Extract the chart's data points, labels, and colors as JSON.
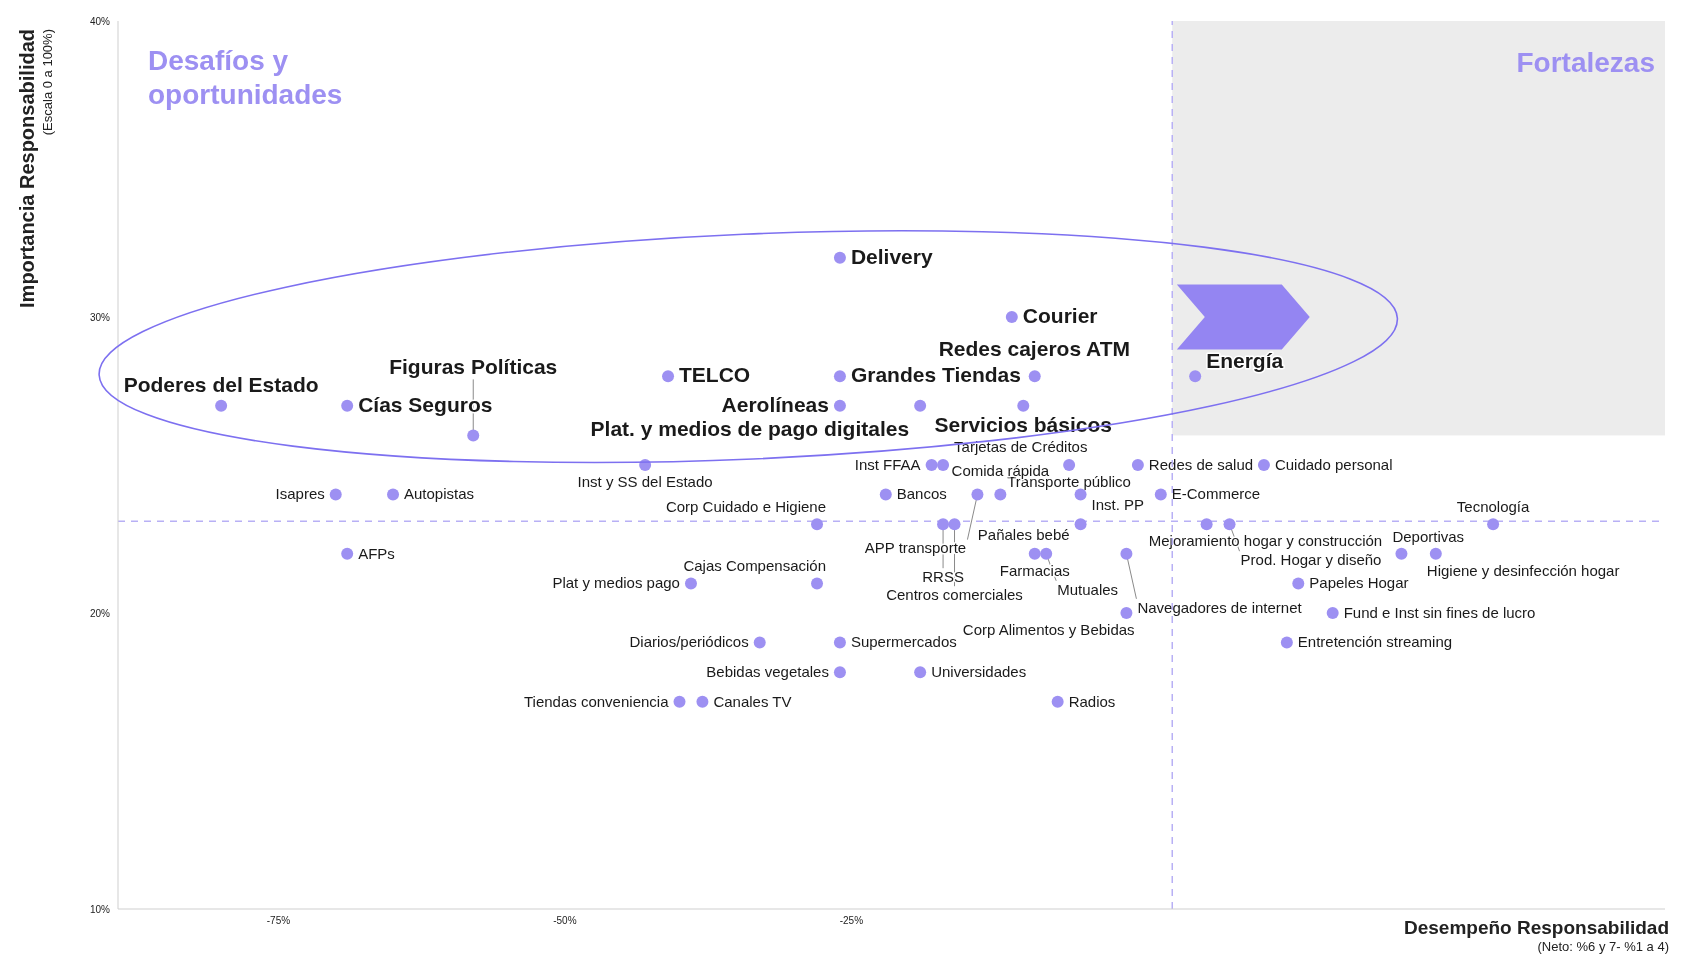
{
  "chart_data": {
    "type": "scatter",
    "xlabel": "Desempeño Responsabilidad",
    "ylabel": "Importancia Responsabilidad",
    "marker": "circle",
    "xlim": [
      -89,
      46
    ],
    "ylim": [
      10,
      40
    ],
    "xticks": [
      {
        "value": -75,
        "label": "-75%"
      },
      {
        "value": -50,
        "label": "-50%"
      },
      {
        "value": -25,
        "label": "-25%"
      }
    ],
    "yticks": [
      {
        "value": 10,
        "label": "10%"
      },
      {
        "value": 20,
        "label": "20%"
      },
      {
        "value": 30,
        "label": "30%"
      },
      {
        "value": 40,
        "label": "40%"
      }
    ],
    "ref_lines": [
      {
        "axis": "x",
        "value": 3,
        "color": "#b8b0f5",
        "line_style": "dashed"
      },
      {
        "axis": "y",
        "value": 23.1,
        "color": "#b8b0f5",
        "line_style": "dashed"
      }
    ],
    "series": [
      {
        "color": "#9d90f2",
        "x": [
          -26,
          -11,
          -41,
          -26,
          -9,
          5,
          -80,
          -69,
          -26,
          -19,
          -10,
          -58
        ],
        "values": [
          32,
          30,
          28,
          28,
          28,
          28,
          27,
          27,
          27,
          27,
          27,
          26
        ]
      },
      {
        "color": "#9d90f2",
        "x": [
          -43,
          -18,
          -17,
          -6,
          0,
          11,
          -70,
          -65,
          -22,
          -14,
          -12,
          -5,
          2,
          -28,
          -17,
          -16,
          -5,
          6,
          8,
          31,
          -69,
          -9,
          -8,
          -1,
          23,
          26,
          -39,
          -28,
          14,
          -1,
          17,
          -33,
          -26,
          13,
          -26,
          -19,
          -40,
          -38,
          -7
        ],
        "values": [
          25,
          25,
          25,
          25,
          25,
          25,
          24,
          24,
          24,
          24,
          24,
          24,
          24,
          23,
          23,
          23,
          23,
          23,
          23,
          23,
          22,
          22,
          22,
          22,
          22,
          22,
          21,
          21,
          21,
          20,
          20,
          19,
          19,
          19,
          18,
          18,
          17,
          17,
          17
        ]
      }
    ],
    "annotations": [
      "Desafíos y oportunidades",
      "Fortalezas",
      "(Escala 0 a 100%)",
      "(Neto: %6 y 7- %1 a 4)",
      {
        "text": "Delivery",
        "x": -26,
        "y": 32
      },
      {
        "text": "Courier",
        "x": -11,
        "y": 30
      },
      {
        "text": "TELCO",
        "x": -41,
        "y": 28
      },
      {
        "text": "Grandes Tiendas",
        "x": -26,
        "y": 28
      },
      {
        "text": "Redes cajeros ATM",
        "x": -9,
        "y": 28
      },
      {
        "text": "Energía",
        "x": 5,
        "y": 28
      },
      {
        "text": "Poderes del Estado",
        "x": -80,
        "y": 27
      },
      {
        "text": "Cías Seguros",
        "x": -69,
        "y": 27
      },
      {
        "text": "Aerolíneas",
        "x": -26,
        "y": 27
      },
      {
        "text": "Plat. y medios de pago digitales",
        "x": -19,
        "y": 27
      },
      {
        "text": "Servicios básicos",
        "x": -10,
        "y": 27
      },
      {
        "text": "Figuras Políticas",
        "x": -58,
        "y": 26
      },
      {
        "text": "Inst y SS del Estado",
        "x": -43,
        "y": 25
      },
      {
        "text": "Inst FFAA",
        "x": -18,
        "y": 25
      },
      {
        "text": "Tarjetas de Créditos",
        "x": -17,
        "y": 25
      },
      {
        "text": "Transporte público",
        "x": -6,
        "y": 25
      },
      {
        "text": "Redes de salud",
        "x": 0,
        "y": 25
      },
      {
        "text": "Cuidado personal",
        "x": 11,
        "y": 25
      },
      {
        "text": "Isapres",
        "x": -70,
        "y": 24
      },
      {
        "text": "Autopistas",
        "x": -65,
        "y": 24
      },
      {
        "text": "Bancos",
        "x": -22,
        "y": 24
      },
      {
        "text": "APP transporte",
        "x": -14,
        "y": 24
      },
      {
        "text": "Comida rápida",
        "x": -12,
        "y": 24
      },
      {
        "text": "Inst. PP",
        "x": -5,
        "y": 24
      },
      {
        "text": "E-Commerce",
        "x": 2,
        "y": 24
      },
      {
        "text": "Corp Cuidado e Higiene",
        "x": -28,
        "y": 23
      },
      {
        "text": "RRSS",
        "x": -17,
        "y": 23
      },
      {
        "text": "Centros comerciales",
        "x": -16,
        "y": 23
      },
      {
        "text": "Pañales bebé",
        "x": -5,
        "y": 23
      },
      {
        "text": "Mejoramiento hogar y construcción",
        "x": 6,
        "y": 23
      },
      {
        "text": "Prod. Hogar y diseño",
        "x": 8,
        "y": 23
      },
      {
        "text": "Tecnología",
        "x": 31,
        "y": 23
      },
      {
        "text": "AFPs",
        "x": -69,
        "y": 22
      },
      {
        "text": "Farmacias",
        "x": -9,
        "y": 22
      },
      {
        "text": "Mutuales",
        "x": -8,
        "y": 22
      },
      {
        "text": "Navegadores de internet",
        "x": -1,
        "y": 22
      },
      {
        "text": "Deportivas",
        "x": 23,
        "y": 22
      },
      {
        "text": "Higiene y desinfección hogar",
        "x": 26,
        "y": 22
      },
      {
        "text": "Plat y medios pago",
        "x": -39,
        "y": 21
      },
      {
        "text": "Cajas Compensación",
        "x": -28,
        "y": 21
      },
      {
        "text": "Papeles Hogar",
        "x": 14,
        "y": 21
      },
      {
        "text": "Corp Alimentos y Bebidas",
        "x": -1,
        "y": 20
      },
      {
        "text": "Fund e Inst sin fines de lucro",
        "x": 17,
        "y": 20
      },
      {
        "text": "Diarios/periódicos",
        "x": -33,
        "y": 19
      },
      {
        "text": "Supermercados",
        "x": -26,
        "y": 19
      },
      {
        "text": "Entretención streaming",
        "x": 13,
        "y": 19
      },
      {
        "text": "Bebidas vegetales",
        "x": -26,
        "y": 18
      },
      {
        "text": "Universidades",
        "x": -19,
        "y": 18
      },
      {
        "text": "Tiendas conveniencia",
        "x": -40,
        "y": 17
      },
      {
        "text": "Canales TV",
        "x": -38,
        "y": 17
      },
      {
        "text": "Radios",
        "x": -7,
        "y": 17
      }
    ]
  }
}
